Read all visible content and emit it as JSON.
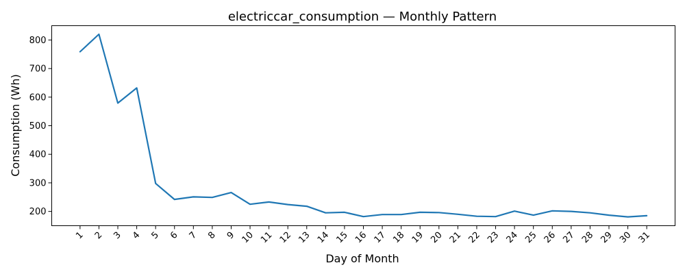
{
  "chart_data": {
    "type": "line",
    "title": "electriccar_consumption — Monthly Pattern",
    "xlabel": "Day of Month",
    "ylabel": "Consumption (Wh)",
    "x_tick_labels": [
      "1",
      "2",
      "3",
      "4",
      "5",
      "6",
      "7",
      "8",
      "9",
      "10",
      "11",
      "12",
      "13",
      "14",
      "15",
      "16",
      "17",
      "18",
      "19",
      "20",
      "21",
      "22",
      "23",
      "24",
      "25",
      "26",
      "27",
      "28",
      "29",
      "30",
      "31"
    ],
    "yticks": [
      200,
      300,
      400,
      500,
      600,
      700,
      800
    ],
    "ylim": [
      150,
      850
    ],
    "xlim": [
      -1.5,
      31.5
    ],
    "grid": false,
    "legend": "none",
    "series": [
      {
        "color": "#1f77b4",
        "x": [
          0,
          1,
          2,
          3,
          4,
          5,
          6,
          7,
          8,
          9,
          10,
          11,
          12,
          13,
          14,
          15,
          16,
          17,
          18,
          19,
          20,
          21,
          22,
          23,
          24,
          25,
          26,
          27,
          28,
          29,
          30
        ],
        "y": [
          759,
          820,
          579,
          632,
          298,
          242,
          251,
          249,
          266,
          225,
          233,
          224,
          218,
          195,
          197,
          182,
          189,
          189,
          197,
          196,
          190,
          183,
          182,
          201,
          187,
          202,
          200,
          195,
          187,
          181,
          185
        ]
      }
    ]
  }
}
